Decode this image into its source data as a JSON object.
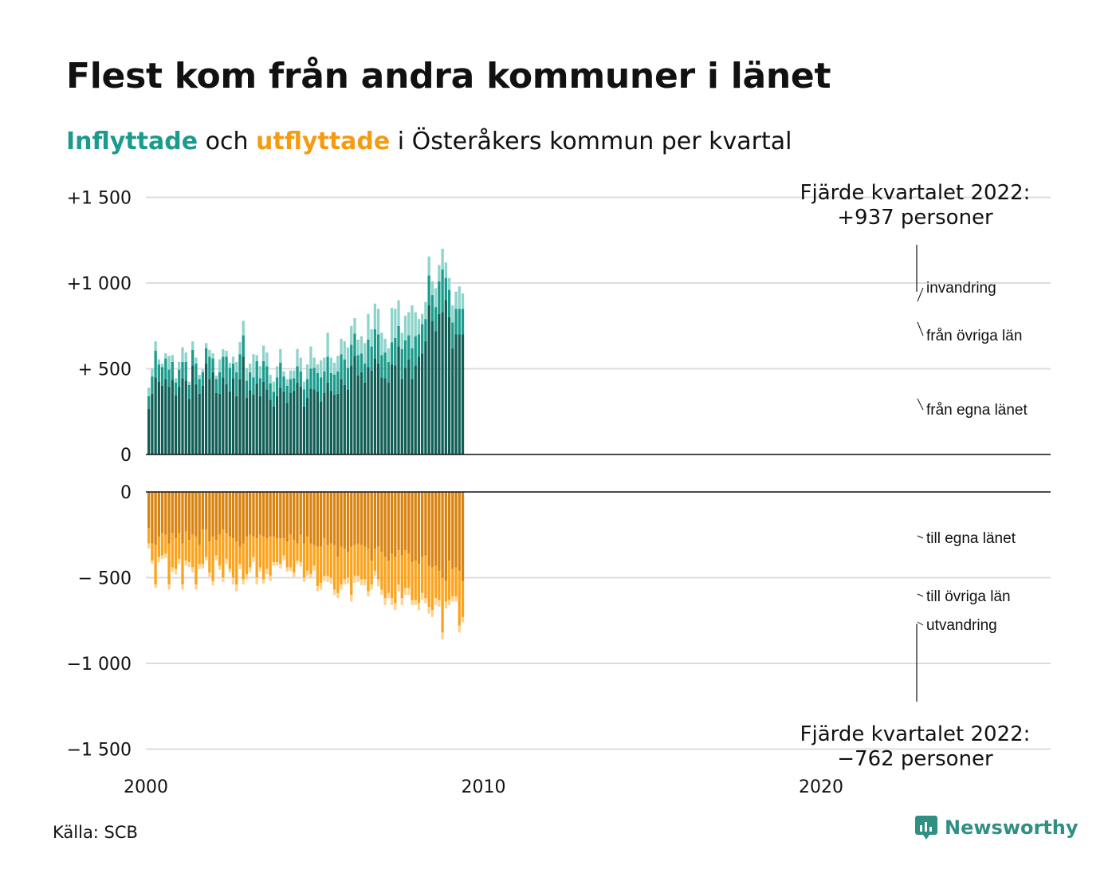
{
  "title": "Flest kom från andra kommuner i länet",
  "subtitle": {
    "in_word": "Inflyttade",
    "mid": " och ",
    "out_word": "utflyttade",
    "rest": " i Österåkers kommun per kvartal"
  },
  "source": "Källa: SCB",
  "brand": "Newsworthy",
  "colors": {
    "in_own": "#115e56",
    "in_other": "#1a9b8c",
    "in_abroad": "#8dd4cb",
    "out_own": "#d98310",
    "out_other": "#fba31c",
    "out_abroad": "#fcd48f"
  },
  "chart_data": {
    "type": "bar",
    "subtype": "stacked, diverging",
    "x_ticks": [
      "2000",
      "2010",
      "2020"
    ],
    "y_ticks_top": [
      "+1 500",
      "+1 000",
      "+  500",
      "0"
    ],
    "y_ticks_bottom": [
      "0",
      "−  500",
      "−1 000",
      "−1 500"
    ],
    "ylim_top": [
      0,
      1500
    ],
    "ylim_bottom": [
      -1500,
      0
    ],
    "first_quarter": "2000 Q1",
    "annotation_top": [
      "Fjärde kvartalet 2022:",
      "+937 personer"
    ],
    "annotation_bottom": [
      "Fjärde kvartalet 2022:",
      "−762 personer"
    ],
    "labels_in": [
      "invandring",
      "från övriga län",
      "från egna länet"
    ],
    "labels_out": [
      "till egna länet",
      "till övriga län",
      "utvandring"
    ],
    "series": [
      {
        "name": "från egna länet",
        "values": [
          265,
          355,
          450,
          425,
          400,
          440,
          395,
          435,
          345,
          395,
          445,
          430,
          325,
          520,
          410,
          355,
          400,
          530,
          440,
          480,
          360,
          355,
          450,
          410,
          365,
          445,
          340,
          440,
          570,
          330,
          375,
          350,
          415,
          340,
          425,
          380,
          320,
          280,
          340,
          390,
          365,
          300,
          360,
          370,
          420,
          395,
          280,
          330,
          385,
          380,
          365,
          310,
          360,
          420,
          370,
          350,
          355,
          440,
          405,
          380,
          520,
          575,
          460,
          480,
          420,
          510,
          490,
          560,
          530,
          450,
          445,
          420,
          525,
          520,
          630,
          440,
          505,
          555,
          440,
          520,
          570,
          590,
          660,
          870,
          780,
          720,
          820,
          830,
          900,
          800,
          620,
          700,
          700,
          700
        ]
      },
      {
        "name": "från övriga län",
        "values": [
          75,
          100,
          155,
          100,
          110,
          120,
          100,
          105,
          75,
          100,
          95,
          110,
          80,
          90,
          120,
          85,
          80,
          90,
          130,
          80,
          80,
          125,
          120,
          160,
          140,
          85,
          140,
          145,
          125,
          100,
          105,
          100,
          130,
          105,
          120,
          135,
          95,
          85,
          110,
          145,
          90,
          100,
          80,
          75,
          95,
          90,
          100,
          110,
          115,
          125,
          110,
          140,
          125,
          150,
          105,
          115,
          130,
          145,
          150,
          125,
          120,
          130,
          120,
          110,
          110,
          160,
          140,
          170,
          170,
          130,
          150,
          120,
          130,
          160,
          120,
          175,
          160,
          140,
          180,
          170,
          130,
          170,
          130,
          175,
          150,
          140,
          190,
          250,
          130,
          160,
          150,
          150,
          150,
          150
        ]
      },
      {
        "name": "invandring",
        "values": [
          50,
          45,
          55,
          30,
          20,
          30,
          80,
          40,
          25,
          45,
          85,
          55,
          20,
          50,
          35,
          25,
          15,
          30,
          40,
          30,
          20,
          75,
          45,
          35,
          30,
          40,
          60,
          70,
          85,
          75,
          50,
          135,
          35,
          70,
          90,
          80,
          50,
          60,
          65,
          80,
          30,
          40,
          50,
          45,
          100,
          80,
          45,
          85,
          130,
          60,
          50,
          100,
          80,
          140,
          90,
          70,
          90,
          90,
          105,
          120,
          110,
          90,
          90,
          100,
          120,
          150,
          100,
          150,
          150,
          130,
          80,
          80,
          200,
          170,
          150,
          95,
          145,
          135,
          250,
          140,
          90,
          60,
          100,
          110,
          80,
          110,
          95,
          120,
          90,
          70,
          100,
          100,
          130,
          90
        ]
      },
      {
        "name": "till egna länet",
        "values": [
          210,
          300,
          310,
          260,
          240,
          250,
          300,
          240,
          270,
          240,
          300,
          230,
          280,
          250,
          260,
          310,
          220,
          220,
          290,
          260,
          280,
          250,
          220,
          240,
          260,
          270,
          290,
          320,
          300,
          260,
          250,
          260,
          270,
          250,
          260,
          270,
          260,
          260,
          270,
          270,
          270,
          290,
          250,
          280,
          300,
          250,
          300,
          260,
          300,
          310,
          320,
          320,
          270,
          310,
          300,
          310,
          380,
          320,
          330,
          350,
          320,
          310,
          300,
          310,
          320,
          330,
          400,
          330,
          320,
          350,
          380,
          400,
          360,
          380,
          340,
          370,
          340,
          360,
          410,
          400,
          420,
          380,
          370,
          430,
          440,
          430,
          460,
          500,
          520,
          400,
          450,
          440,
          460,
          520
        ]
      },
      {
        "name": "till övriga län",
        "values": [
          90,
          100,
          230,
          120,
          130,
          110,
          240,
          200,
          180,
          150,
          240,
          170,
          130,
          190,
          280,
          110,
          200,
          160,
          180,
          260,
          90,
          180,
          280,
          150,
          190,
          230,
          250,
          100,
          210,
          220,
          190,
          120,
          230,
          190,
          250,
          180,
          230,
          150,
          140,
          150,
          100,
          150,
          190,
          190,
          100,
          160,
          200,
          200,
          180,
          120,
          230,
          210,
          220,
          180,
          200,
          260,
          210,
          220,
          180,
          150,
          280,
          180,
          190,
          200,
          190,
          250,
          140,
          130,
          190,
          220,
          240,
          190,
          260,
          270,
          200,
          250,
          220,
          200,
          220,
          230,
          230,
          210,
          250,
          240,
          250,
          190,
          170,
          320,
          120,
          230,
          160,
          170,
          320,
          210
        ]
      },
      {
        "name": "utvandring",
        "values": [
          30,
          20,
          20,
          30,
          20,
          25,
          30,
          25,
          30,
          30,
          30,
          30,
          30,
          30,
          30,
          30,
          25,
          20,
          25,
          25,
          30,
          25,
          25,
          30,
          20,
          40,
          40,
          30,
          30,
          30,
          30,
          30,
          40,
          25,
          25,
          30,
          30,
          20,
          20,
          25,
          30,
          25,
          20,
          25,
          20,
          25,
          25,
          30,
          25,
          30,
          30,
          40,
          30,
          35,
          35,
          30,
          30,
          30,
          30,
          35,
          40,
          40,
          35,
          35,
          35,
          30,
          30,
          30,
          40,
          30,
          40,
          30,
          40,
          40,
          40,
          40,
          40,
          40,
          30,
          30,
          40,
          40,
          30,
          40,
          40,
          40,
          40,
          40,
          40,
          30,
          30,
          30,
          40,
          30
        ]
      }
    ]
  }
}
